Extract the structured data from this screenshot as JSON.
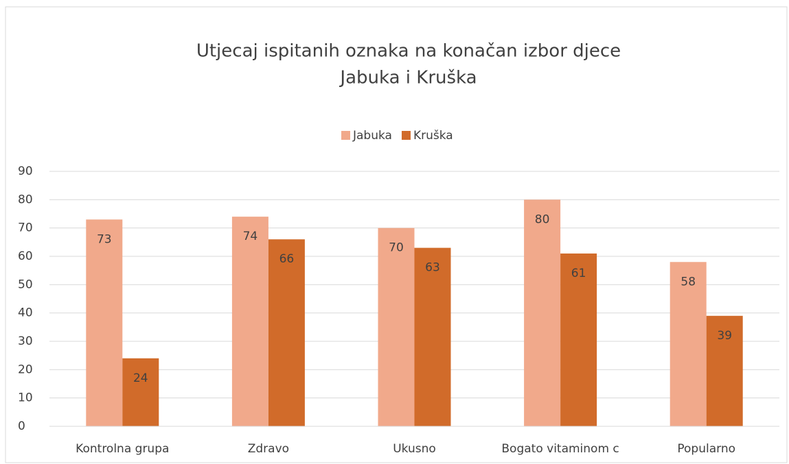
{
  "chart_data": {
    "type": "bar",
    "title": "Utjecaj ispitanih oznaka na konačan izbor djece",
    "subtitle": "Jabuka i Kruška",
    "categories": [
      "Kontrolna grupa",
      "Zdravo",
      "Ukusno",
      "Bogato vitaminom c",
      "Popularno"
    ],
    "series": [
      {
        "name": "Jabuka",
        "color": "#f1a98b",
        "values": [
          73,
          74,
          70,
          80,
          58
        ]
      },
      {
        "name": "Kruška",
        "color": "#d16b2a",
        "values": [
          24,
          66,
          63,
          61,
          39
        ]
      }
    ],
    "ylim": [
      0,
      90
    ],
    "yticks": [
      0,
      10,
      20,
      30,
      40,
      50,
      60,
      70,
      80,
      90
    ],
    "grid": true,
    "legend": "top"
  }
}
